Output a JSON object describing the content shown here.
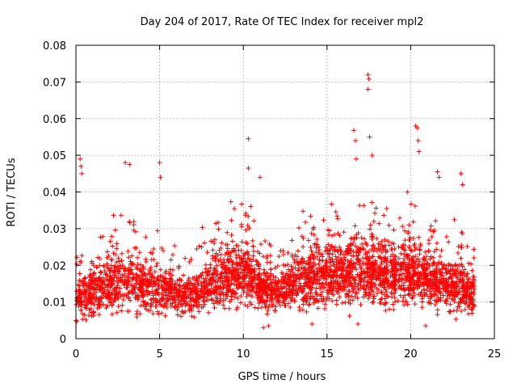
{
  "chart_data": {
    "type": "scatter",
    "title": "Day 204 of 2017, Rate Of TEC Index for receiver mpl2",
    "xlabel": "GPS time / hours",
    "ylabel": "ROTI / TECUs",
    "xlim": [
      0,
      25
    ],
    "ylim": [
      0,
      0.08
    ],
    "xticks": [
      0,
      5,
      10,
      15,
      20,
      25
    ],
    "xtick_labels": [
      "0",
      "5",
      "10",
      "15",
      "20",
      "25"
    ],
    "yticks": [
      0,
      0.01,
      0.02,
      0.03,
      0.04,
      0.05,
      0.06,
      0.07,
      0.08
    ],
    "ytick_labels": [
      "0",
      "0.01",
      "0.02",
      "0.03",
      "0.04",
      "0.05",
      "0.06",
      "0.07",
      "0.08"
    ],
    "grid": true,
    "marker": "+",
    "color": "#ff0000",
    "x_data_range": [
      0,
      23.8
    ],
    "notable_points": [
      {
        "x": 0.25,
        "y": 0.049
      },
      {
        "x": 0.3,
        "y": 0.047
      },
      {
        "x": 0.35,
        "y": 0.045
      },
      {
        "x": 2.95,
        "y": 0.048
      },
      {
        "x": 3.2,
        "y": 0.0475
      },
      {
        "x": 5.0,
        "y": 0.048
      },
      {
        "x": 5.05,
        "y": 0.044
      },
      {
        "x": 10.3,
        "y": 0.0545
      },
      {
        "x": 10.3,
        "y": 0.0465
      },
      {
        "x": 11.0,
        "y": 0.044
      },
      {
        "x": 16.6,
        "y": 0.0568
      },
      {
        "x": 16.7,
        "y": 0.054
      },
      {
        "x": 16.75,
        "y": 0.049
      },
      {
        "x": 17.45,
        "y": 0.072
      },
      {
        "x": 17.5,
        "y": 0.0708
      },
      {
        "x": 17.45,
        "y": 0.068
      },
      {
        "x": 17.55,
        "y": 0.055
      },
      {
        "x": 17.7,
        "y": 0.05
      },
      {
        "x": 20.3,
        "y": 0.058
      },
      {
        "x": 20.4,
        "y": 0.0575
      },
      {
        "x": 20.45,
        "y": 0.054
      },
      {
        "x": 20.5,
        "y": 0.051
      },
      {
        "x": 21.6,
        "y": 0.0455
      },
      {
        "x": 21.7,
        "y": 0.044
      },
      {
        "x": 23.0,
        "y": 0.045
      },
      {
        "x": 23.1,
        "y": 0.042
      },
      {
        "x": 11.2,
        "y": 0.003
      },
      {
        "x": 11.5,
        "y": 0.0035
      },
      {
        "x": 14.1,
        "y": 0.004
      },
      {
        "x": 16.85,
        "y": 0.004
      },
      {
        "x": 20.9,
        "y": 0.0035
      },
      {
        "x": 0.0,
        "y": 0.005
      }
    ],
    "envelope": [
      {
        "x": 0,
        "base": 0.011,
        "spread": 0.008,
        "n": 130
      },
      {
        "x": 1,
        "base": 0.013,
        "spread": 0.01,
        "n": 130
      },
      {
        "x": 2,
        "base": 0.015,
        "spread": 0.011,
        "n": 130
      },
      {
        "x": 3,
        "base": 0.016,
        "spread": 0.012,
        "n": 130
      },
      {
        "x": 4,
        "base": 0.014,
        "spread": 0.01,
        "n": 120
      },
      {
        "x": 5,
        "base": 0.014,
        "spread": 0.01,
        "n": 130
      },
      {
        "x": 6,
        "base": 0.012,
        "spread": 0.007,
        "n": 120
      },
      {
        "x": 7,
        "base": 0.012,
        "spread": 0.007,
        "n": 120
      },
      {
        "x": 8,
        "base": 0.014,
        "spread": 0.01,
        "n": 140
      },
      {
        "x": 9,
        "base": 0.017,
        "spread": 0.012,
        "n": 160
      },
      {
        "x": 10,
        "base": 0.018,
        "spread": 0.012,
        "n": 170
      },
      {
        "x": 11,
        "base": 0.015,
        "spread": 0.01,
        "n": 150
      },
      {
        "x": 12,
        "base": 0.012,
        "spread": 0.007,
        "n": 130
      },
      {
        "x": 13,
        "base": 0.015,
        "spread": 0.01,
        "n": 140
      },
      {
        "x": 14,
        "base": 0.016,
        "spread": 0.011,
        "n": 150
      },
      {
        "x": 15,
        "base": 0.018,
        "spread": 0.012,
        "n": 160
      },
      {
        "x": 16,
        "base": 0.017,
        "spread": 0.012,
        "n": 160
      },
      {
        "x": 17,
        "base": 0.019,
        "spread": 0.013,
        "n": 170
      },
      {
        "x": 18,
        "base": 0.018,
        "spread": 0.012,
        "n": 160
      },
      {
        "x": 19,
        "base": 0.017,
        "spread": 0.012,
        "n": 160
      },
      {
        "x": 20,
        "base": 0.018,
        "spread": 0.012,
        "n": 160
      },
      {
        "x": 21,
        "base": 0.016,
        "spread": 0.011,
        "n": 150
      },
      {
        "x": 22,
        "base": 0.015,
        "spread": 0.01,
        "n": 140
      },
      {
        "x": 23,
        "base": 0.014,
        "spread": 0.01,
        "n": 130
      },
      {
        "x": 23.8,
        "base": 0.013,
        "spread": 0.008,
        "n": 60
      }
    ]
  }
}
